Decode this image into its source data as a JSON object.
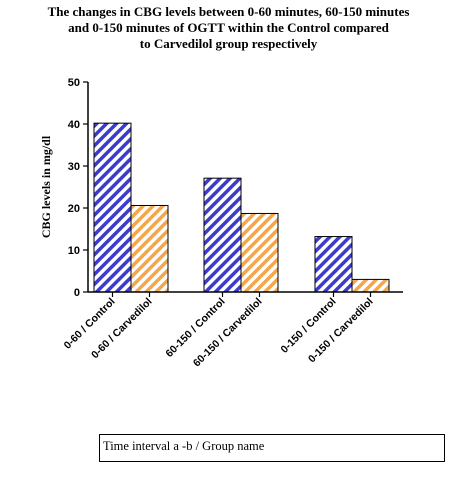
{
  "chart_data": {
    "type": "bar",
    "title": {
      "line1": "The changes in CBG levels between 0-60 minutes, 60-150 minutes",
      "line2": "and 0-150 minutes of OGTT within the Control compared",
      "line3": "to Carvedilol group respectively"
    },
    "ylabel": "CBG levels in mg/dl",
    "xlabel": "Time interval a -b / Group name",
    "ylim": [
      0,
      50
    ],
    "yticks": [
      "0",
      "10",
      "20",
      "30",
      "40",
      "50"
    ],
    "categories": [
      "0-60 / Control",
      "0-60 / Carvedilol",
      "60-150 / Control",
      "60-150 / Carvedilol",
      "0-150 / Control",
      "0-150 / Carvedilol"
    ],
    "values": [
      40.2,
      20.6,
      27.1,
      18.7,
      13.2,
      3.0
    ],
    "bar_groups": [
      "control",
      "carvedilol",
      "control",
      "carvedilol",
      "control",
      "carvedilol"
    ],
    "colors": {
      "control": "#3b3bcc",
      "carvedilol": "#f5a54a"
    },
    "grid": false
  }
}
